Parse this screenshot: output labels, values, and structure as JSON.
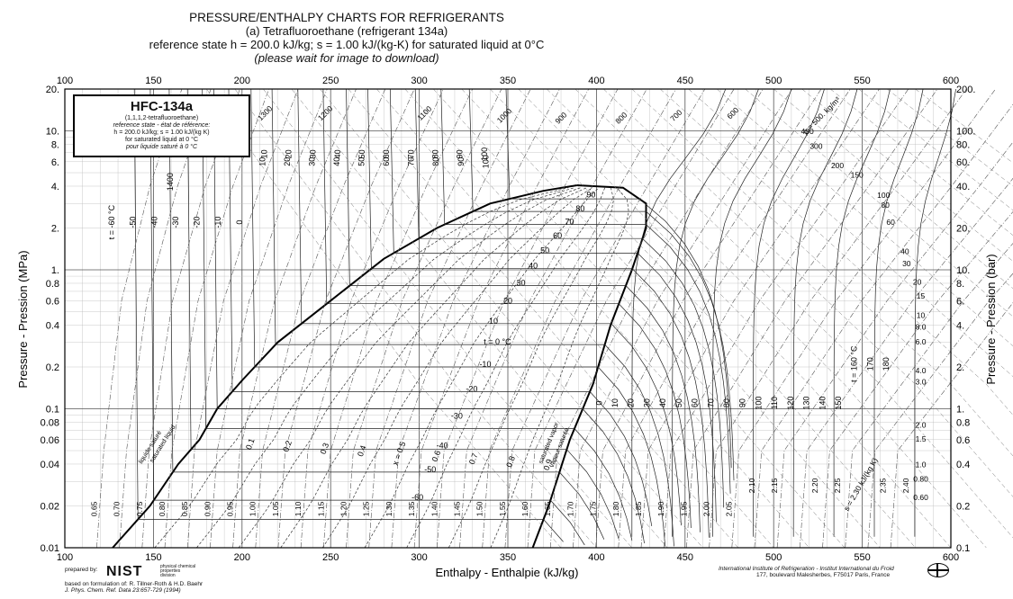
{
  "header": {
    "line1": "PRESSURE/ENTHALPY CHARTS FOR REFRIGERANTS",
    "line2": "(a) Tetrafluoroethane (refrigerant 134a)",
    "line3": "reference state h = 200.0 kJ/kg; s = 1.00 kJ/(kg-K) for saturated liquid at 0°C",
    "line4": "(please wait for image to download)"
  },
  "legend": {
    "name": "HFC-134a",
    "chemical": "(1,1,1,2-tetrafluoroethane)",
    "ref_line1": "reference state - état de référence:",
    "ref_line2": "h = 200.0 kJ/kg;  s = 1.00 kJ/(kg K)",
    "ref_line3": "for saturated liquid at 0 °C",
    "ref_line4": "pour liquide saturé à 0 °C"
  },
  "footer": {
    "prepared_by": "prepared by:",
    "nist": "NIST",
    "nist_sub": "physical chemical properties division",
    "based_on": "based on formulation of:  R. Tillner-Roth & H.D. Baehr",
    "journal": "J. Phys. Chem. Ref. Data 23:657-729 (1994)",
    "iir_line1": "International Institute of Refrigeration - Institut International du Froid",
    "iir_line2": "177, boulevard Malesherbes, F75017 Paris, France"
  },
  "chart_data": {
    "type": "line",
    "xlabel": "Enthalpy - Enthalpie  (kJ/kg)",
    "ylabel_left": "Pressure - Pression (MPa)",
    "ylabel_right": "Pressure - Pression (bar)",
    "xlim": [
      100,
      600
    ],
    "ylim": [
      0.01,
      20
    ],
    "y_scale": "log",
    "x_ticks": [
      "100",
      "150",
      "200",
      "250",
      "300",
      "350",
      "400",
      "450",
      "500",
      "550",
      "600"
    ],
    "y_ticks_left": [
      {
        "v": 20,
        "label": "20."
      },
      {
        "v": 10,
        "label": "10."
      },
      {
        "v": 8,
        "label": "8."
      },
      {
        "v": 6,
        "label": "6."
      },
      {
        "v": 4,
        "label": "4."
      },
      {
        "v": 2,
        "label": "2."
      },
      {
        "v": 1,
        "label": "1."
      },
      {
        "v": 0.8,
        "label": "0.8"
      },
      {
        "v": 0.6,
        "label": "0.6"
      },
      {
        "v": 0.4,
        "label": "0.4"
      },
      {
        "v": 0.2,
        "label": "0.2"
      },
      {
        "v": 0.1,
        "label": "0.1"
      },
      {
        "v": 0.08,
        "label": "0.08"
      },
      {
        "v": 0.06,
        "label": "0.06"
      },
      {
        "v": 0.04,
        "label": "0.04"
      },
      {
        "v": 0.02,
        "label": "0.02"
      },
      {
        "v": 0.01,
        "label": "0.01"
      }
    ],
    "y_ticks_right": [
      {
        "v": 20,
        "label": "200."
      },
      {
        "v": 10,
        "label": "100."
      },
      {
        "v": 8,
        "label": "80."
      },
      {
        "v": 6,
        "label": "60."
      },
      {
        "v": 4,
        "label": "40."
      },
      {
        "v": 2,
        "label": "20."
      },
      {
        "v": 1,
        "label": "10."
      },
      {
        "v": 0.8,
        "label": "8."
      },
      {
        "v": 0.6,
        "label": "6."
      },
      {
        "v": 0.4,
        "label": "4."
      },
      {
        "v": 0.2,
        "label": "2."
      },
      {
        "v": 0.1,
        "label": "1."
      },
      {
        "v": 0.08,
        "label": "0.8"
      },
      {
        "v": 0.06,
        "label": "0.6"
      },
      {
        "v": 0.04,
        "label": "0.4"
      },
      {
        "v": 0.02,
        "label": "0.2"
      },
      {
        "v": 0.01,
        "label": "0.1"
      }
    ],
    "grid": true,
    "saturation_dome": {
      "liquid": [
        {
          "h": 127,
          "p": 0.01
        },
        {
          "h": 148,
          "p": 0.02
        },
        {
          "h": 164,
          "p": 0.04
        },
        {
          "h": 176,
          "p": 0.06
        },
        {
          "h": 186,
          "p": 0.1
        },
        {
          "h": 200,
          "p": 0.16
        },
        {
          "h": 220,
          "p": 0.3
        },
        {
          "h": 250,
          "p": 0.6
        },
        {
          "h": 280,
          "p": 1.2
        },
        {
          "h": 310,
          "p": 2.0
        },
        {
          "h": 340,
          "p": 3.0
        },
        {
          "h": 370,
          "p": 3.7
        },
        {
          "h": 389,
          "p": 4.06
        }
      ],
      "vapor": [
        {
          "h": 389,
          "p": 4.06
        },
        {
          "h": 415,
          "p": 3.9
        },
        {
          "h": 428,
          "p": 3.0
        },
        {
          "h": 428,
          "p": 2.0
        },
        {
          "h": 420,
          "p": 1.0
        },
        {
          "h": 408,
          "p": 0.4
        },
        {
          "h": 398,
          "p": 0.15
        },
        {
          "h": 385,
          "p": 0.06
        },
        {
          "h": 373,
          "p": 0.02
        },
        {
          "h": 364,
          "p": 0.01
        }
      ],
      "labels": [
        "liquide saturé",
        "saturated liquid",
        "saturated vapor",
        "vapeur saturée"
      ]
    },
    "isotherms_liquid": [
      "t = -60 °C",
      "-50",
      "-40",
      "-30",
      "-20",
      "-10",
      "0",
      "10",
      "20",
      "30",
      "40",
      "50",
      "60",
      "70",
      "80",
      "90",
      "100"
    ],
    "isotherm_labels_in_dome": [
      "90",
      "80",
      "70",
      "60",
      "50",
      "40",
      "30",
      "20",
      "10",
      "t = 0 °C",
      "-10",
      "-20",
      "-30",
      "-40",
      "-50",
      "-60"
    ],
    "isotherms_vapor": [
      "0",
      "10",
      "20",
      "30",
      "40",
      "50",
      "60",
      "70",
      "80",
      "90",
      "100",
      "110",
      "120",
      "130",
      "140",
      "150",
      "t = 160 °C",
      "170",
      "180"
    ],
    "quality_lines": [
      "0.1",
      "0.2",
      "0.3",
      "0.4",
      "x = 0.5",
      "0.6",
      "0.7",
      "0.8",
      "0.9"
    ],
    "entropy_lines": [
      "0.65",
      "0.70",
      "0.75",
      "0.80",
      "0.85",
      "0.90",
      "0.95",
      "1.00",
      "1.05",
      "1.10",
      "1.15",
      "1.20",
      "1.25",
      "1.30",
      "1.35",
      "1.40",
      "1.45",
      "1.50",
      "1.55",
      "1.60",
      "1.65",
      "1.70",
      "1.75",
      "1.80",
      "1.85",
      "1.90",
      "1.95",
      "2.00",
      "2.05",
      "2.10",
      "2.15",
      "2.20",
      "2.25",
      "s = 2.30 kJ/(kg K)",
      "2.35",
      "2.40"
    ],
    "density_lines_top": [
      "1300",
      "1200",
      "1100",
      "1000",
      "900",
      "800",
      "700",
      "600",
      "ρ = 500. kg/m³",
      "400",
      "300",
      "200",
      "150",
      "100",
      "80",
      "60",
      "40",
      "30",
      "20",
      "15",
      "10",
      "8.0",
      "6.0",
      "4.0",
      "3.0",
      "2.0",
      "1.5",
      "1.0",
      "0.80",
      "0.60"
    ],
    "density_labels_inner": [
      "1400"
    ],
    "temperature_top_left": [
      "10",
      "20",
      "30",
      "40",
      "50",
      "60",
      "70",
      "80",
      "90",
      "100"
    ]
  }
}
